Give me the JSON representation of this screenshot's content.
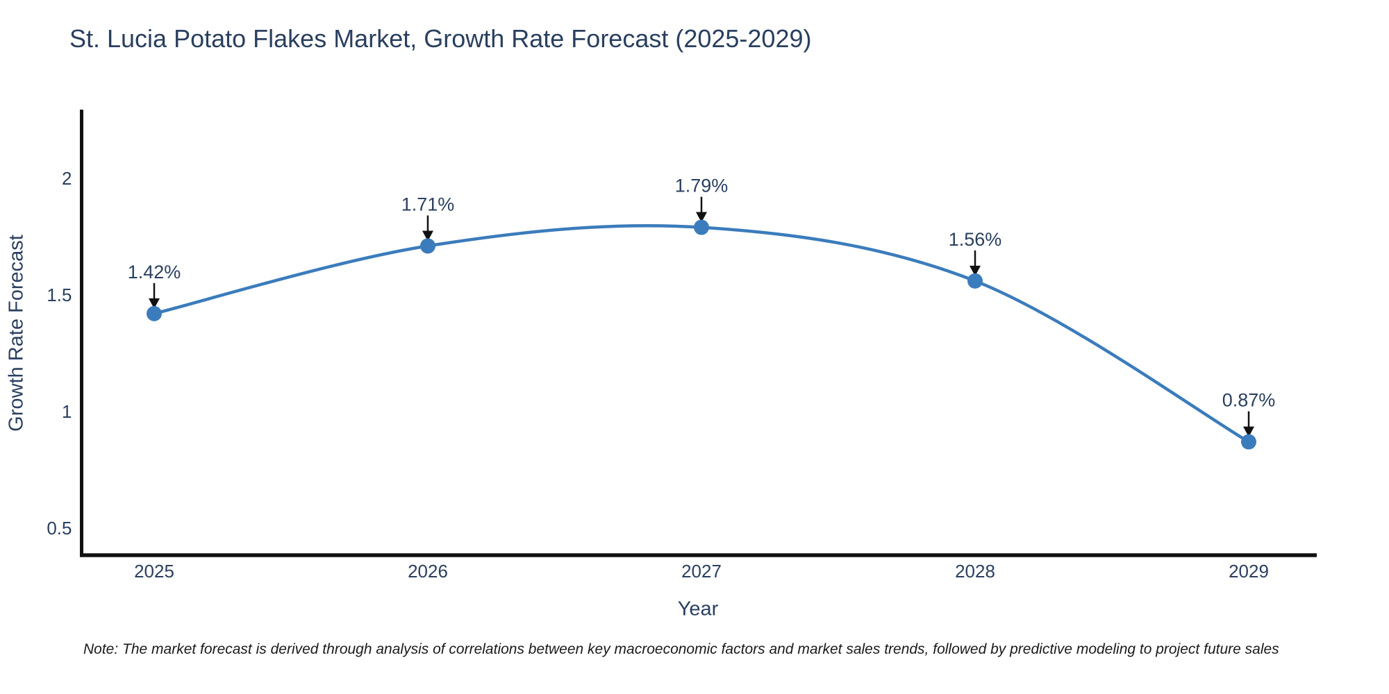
{
  "chart_data": {
    "type": "line",
    "title": "St. Lucia Potato Flakes Market, Growth Rate Forecast (2025-2029)",
    "xlabel": "Year",
    "ylabel": "Growth Rate Forecast",
    "categories": [
      "2025",
      "2026",
      "2027",
      "2028",
      "2029"
    ],
    "values": [
      1.42,
      1.71,
      1.79,
      1.56,
      0.87
    ],
    "point_labels": [
      "1.42%",
      "1.71%",
      "1.79%",
      "1.56%",
      "0.87%"
    ],
    "series_name": "Growth Rate Forecast",
    "y_ticks": {
      "values": [
        2,
        1.5,
        1,
        0.5
      ],
      "labels": [
        "2",
        "1.5",
        "1",
        "0.5"
      ]
    },
    "ylim": [
      0.4,
      2.3
    ],
    "line_shape": "spline",
    "grid": false,
    "legend": false,
    "colors": {
      "line": "#3b7cbc",
      "marker": "#3b7cbc",
      "axis": "#111111",
      "text": "#2a3f5f",
      "annotation_text": "#2a3f5f",
      "annotation_arrow": "#111111"
    }
  },
  "note": {
    "text": "Note: The market forecast is derived through analysis of correlations between key macroeconomic factors and market sales trends, followed by predictive modeling to project future sales"
  }
}
